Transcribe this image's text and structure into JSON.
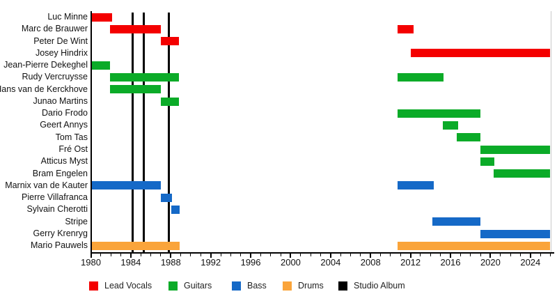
{
  "chart_data": {
    "type": "gantt",
    "description_visible_text_only": "",
    "x_axis": {
      "min": 1980,
      "max": 2026,
      "major_tick_step": 4,
      "minor_tick_step": 1,
      "major_tick_labels": [
        "1980",
        "1984",
        "1988",
        "1992",
        "1996",
        "2000",
        "2004",
        "2008",
        "2012",
        "2016",
        "2020",
        "2024"
      ],
      "grid": false
    },
    "colors": {
      "lead_vocals": "#f40000",
      "guitars": "#0bab28",
      "bass": "#1569c7",
      "drums": "#faa43a",
      "studio_album": "#000000"
    },
    "album_lines_years": [
      1984.2,
      1985.3,
      1987.8
    ],
    "rows": [
      {
        "name": "Luc Minne",
        "role": "Lead Vocals",
        "color_key": "lead_vocals",
        "segments": [
          [
            1980,
            1982.1
          ]
        ]
      },
      {
        "name": "Marc de Brauwer",
        "role": "Lead Vocals",
        "color_key": "lead_vocals",
        "segments": [
          [
            1981.9,
            1987
          ],
          [
            2010.7,
            2012.3
          ]
        ]
      },
      {
        "name": "Peter De Wint",
        "role": "Lead Vocals",
        "color_key": "lead_vocals",
        "segments": [
          [
            1987,
            1988.8
          ]
        ]
      },
      {
        "name": "Josey Hindrix",
        "role": "Lead Vocals",
        "color_key": "lead_vocals",
        "segments": [
          [
            2012,
            2026
          ]
        ]
      },
      {
        "name": "Jean-Pierre Dekeghel",
        "role": "Guitars",
        "color_key": "guitars",
        "segments": [
          [
            1980,
            1981.9
          ]
        ]
      },
      {
        "name": "Rudy Vercruysse",
        "role": "Guitars",
        "color_key": "guitars",
        "segments": [
          [
            1981.9,
            1988.8
          ],
          [
            2010.7,
            2015.3
          ]
        ]
      },
      {
        "name": "Hans van de Kerckhove",
        "role": "Guitars",
        "color_key": "guitars",
        "segments": [
          [
            1981.9,
            1987
          ]
        ]
      },
      {
        "name": "Junao Martins",
        "role": "Guitars",
        "color_key": "guitars",
        "segments": [
          [
            1987,
            1988.8
          ]
        ]
      },
      {
        "name": "Dario Frodo",
        "role": "Guitars",
        "color_key": "guitars",
        "segments": [
          [
            2010.7,
            2019
          ]
        ]
      },
      {
        "name": "Geert Annys",
        "role": "Guitars",
        "color_key": "guitars",
        "segments": [
          [
            2015.2,
            2016.8
          ]
        ]
      },
      {
        "name": "Tom Tas",
        "role": "Guitars",
        "color_key": "guitars",
        "segments": [
          [
            2016.6,
            2019
          ]
        ]
      },
      {
        "name": "Fré Ost",
        "role": "Guitars",
        "color_key": "guitars",
        "segments": [
          [
            2019,
            2026
          ]
        ]
      },
      {
        "name": "Atticus Myst",
        "role": "Guitars",
        "color_key": "guitars",
        "segments": [
          [
            2019,
            2020.4
          ]
        ]
      },
      {
        "name": "Bram Engelen",
        "role": "Guitars",
        "color_key": "guitars",
        "segments": [
          [
            2020.3,
            2026
          ]
        ]
      },
      {
        "name": "Marnix van de Kauter",
        "role": "Bass",
        "color_key": "bass",
        "segments": [
          [
            1980,
            1987
          ],
          [
            2010.7,
            2014.3
          ]
        ]
      },
      {
        "name": "Pierre Villafranca",
        "role": "Bass",
        "color_key": "bass",
        "segments": [
          [
            1987,
            1988.1
          ]
        ]
      },
      {
        "name": "Sylvain Cherotti",
        "role": "Bass",
        "color_key": "bass",
        "segments": [
          [
            1988.05,
            1988.9
          ]
        ]
      },
      {
        "name": "Stripe",
        "role": "Bass",
        "color_key": "bass",
        "segments": [
          [
            2014.2,
            2019
          ]
        ]
      },
      {
        "name": "Gerry Krenryg",
        "role": "Bass",
        "color_key": "bass",
        "segments": [
          [
            2019,
            2026
          ]
        ]
      },
      {
        "name": "Mario Pauwels",
        "role": "Drums",
        "color_key": "drums",
        "segments": [
          [
            1980,
            1988.9
          ],
          [
            2010.7,
            2026
          ]
        ]
      }
    ],
    "legend": [
      {
        "label": "Lead Vocals",
        "color_key": "lead_vocals"
      },
      {
        "label": "Guitars",
        "color_key": "guitars"
      },
      {
        "label": "Bass",
        "color_key": "bass"
      },
      {
        "label": "Drums",
        "color_key": "drums"
      },
      {
        "label": "Studio Album",
        "color_key": "studio_album"
      }
    ],
    "legend_position": "bottom"
  }
}
